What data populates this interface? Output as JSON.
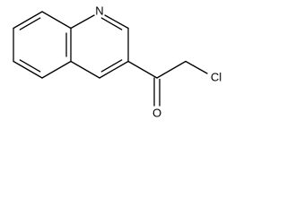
{
  "atoms": [
    {
      "label": "N"
    },
    {
      "label": "O"
    },
    {
      "label": "Cl"
    }
  ]
}
